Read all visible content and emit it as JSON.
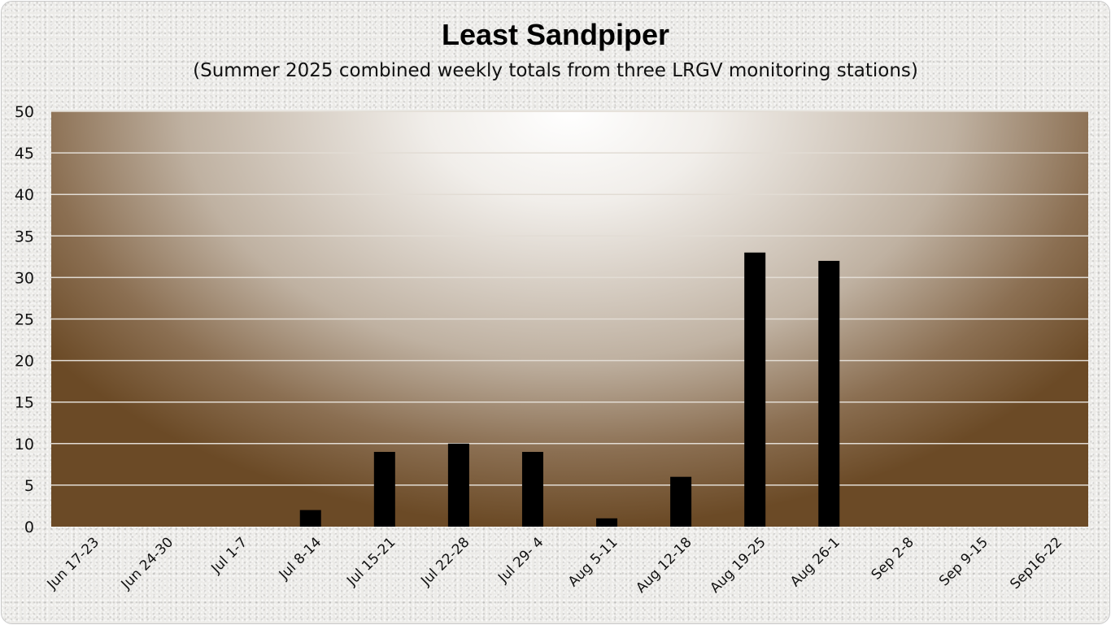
{
  "chart_data": {
    "type": "bar",
    "title": "Least Sandpiper",
    "subtitle": "(Summer 2025 combined weekly totals from three LRGV monitoring stations)",
    "categories": [
      "Jun 17-23",
      "Jun 24-30",
      "Jul 1-7",
      "Jul 8-14",
      "Jul 15-21",
      "Jul 22-28",
      "Jul 29- 4",
      "Aug 5-11",
      "Aug 12-18",
      "Aug 19-25",
      "Aug 26-1",
      "Sep 2-8",
      "Sep 9-15",
      "Sep16-22"
    ],
    "values": [
      0,
      0,
      0,
      2,
      9,
      10,
      9,
      1,
      6,
      33,
      32,
      0,
      0,
      0
    ],
    "ylim": [
      0,
      50
    ],
    "yticks": [
      0,
      5,
      10,
      15,
      20,
      25,
      30,
      35,
      40,
      45,
      50
    ],
    "xlabel": "",
    "ylabel": "",
    "grid": true,
    "legend": "none",
    "colors": {
      "bar": "#000000",
      "gridline": "#e2dcd4",
      "plot_edge": "#6b4a26",
      "plot_center": "#ffffff"
    }
  }
}
